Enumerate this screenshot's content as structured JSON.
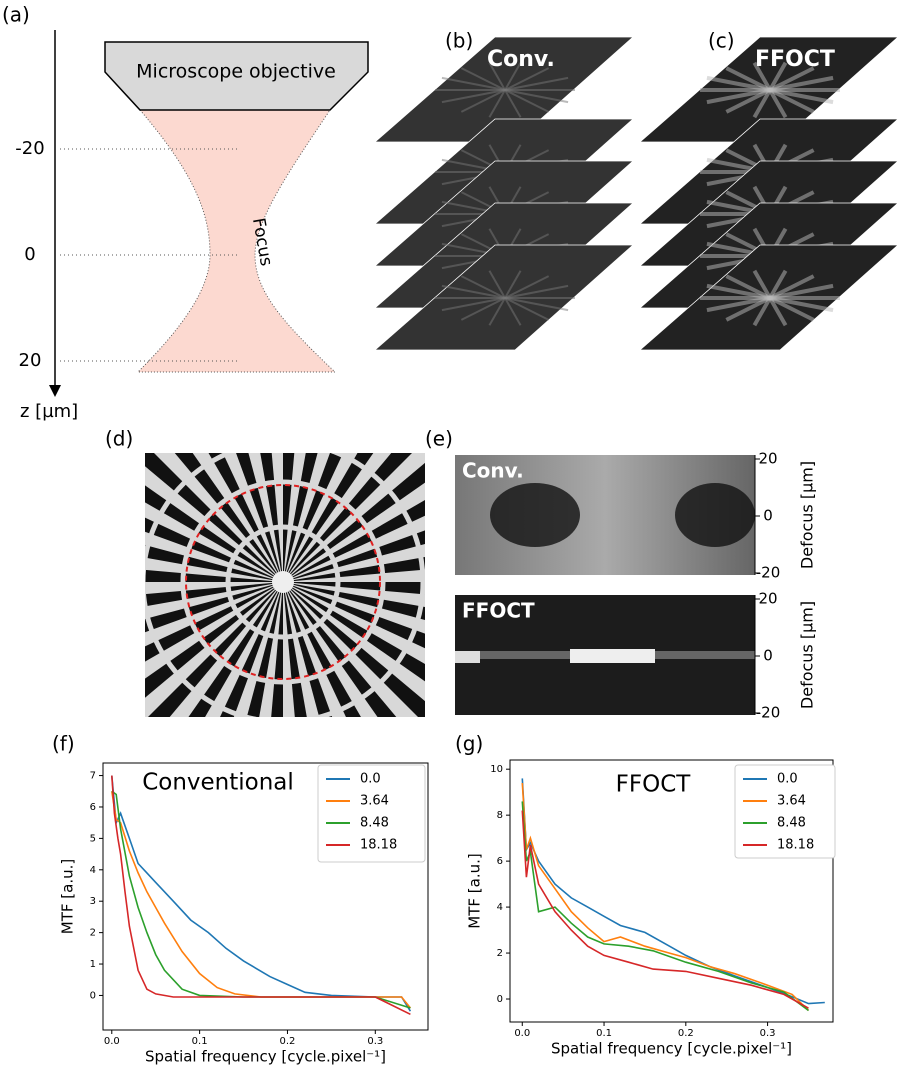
{
  "panel_labels": [
    "(a)",
    "(b)",
    "(c)",
    "(d)",
    "(e)",
    "(f)",
    "(g)"
  ],
  "diagram": {
    "objective": "Microscope objective",
    "focus": "Focus",
    "zticks": [
      -20,
      0,
      20
    ],
    "zlabel": "z [µm]"
  },
  "stacks": [
    {
      "label": "Conv."
    },
    {
      "label": "FFOCT"
    }
  ],
  "images": [
    {
      "label": "Conv.",
      "yticks": [
        20,
        0,
        -20
      ],
      "ylabel": "Defocus [µm]"
    },
    {
      "label": "FFOCT",
      "yticks": [
        20,
        0,
        -20
      ],
      "ylabel": "Defocus [µm]"
    }
  ],
  "chart_data": [
    {
      "type": "line",
      "title": "Conventional",
      "xlabel": "Spatial frequency [cycle.pixel⁻¹]",
      "ylabel": "MTF [a.u.]",
      "xlim": [
        -0.01,
        0.36
      ],
      "ylim": [
        -1.1,
        7.4
      ],
      "xticks": [
        {
          "value": 0,
          "label": "0.0"
        },
        0.1,
        0.2,
        0.3
      ],
      "yticks": [
        0,
        1,
        2,
        3,
        4,
        5,
        6,
        7
      ],
      "legend": "upper right",
      "series": [
        {
          "name": "0.0",
          "color": "#1f77b4",
          "x": [
            0,
            0.005,
            0.01,
            0.02,
            0.03,
            0.04,
            0.05,
            0.07,
            0.09,
            0.11,
            0.13,
            0.15,
            0.18,
            0.2,
            0.22,
            0.25,
            0.3,
            0.33,
            0.34
          ],
          "values": [
            7,
            5.5,
            5.8,
            5,
            4.2,
            3.9,
            3.6,
            3,
            2.4,
            2,
            1.5,
            1.1,
            0.6,
            0.35,
            0.1,
            0,
            -0.05,
            -0.05,
            -0.5
          ]
        },
        {
          "name": "3.64",
          "color": "#ff7f0e",
          "x": [
            0,
            0.005,
            0.01,
            0.02,
            0.03,
            0.04,
            0.05,
            0.06,
            0.08,
            0.1,
            0.12,
            0.14,
            0.17,
            0.2,
            0.25,
            0.3,
            0.33,
            0.34
          ],
          "values": [
            6.5,
            5.6,
            5.5,
            4.6,
            3.9,
            3.3,
            2.8,
            2.3,
            1.4,
            0.7,
            0.25,
            0.05,
            -0.05,
            -0.05,
            -0.05,
            -0.05,
            -0.05,
            -0.4
          ]
        },
        {
          "name": "8.48",
          "color": "#2ca02c",
          "x": [
            0,
            0.005,
            0.01,
            0.02,
            0.03,
            0.04,
            0.05,
            0.06,
            0.08,
            0.1,
            0.15,
            0.2,
            0.3,
            0.34
          ],
          "values": [
            6.5,
            6.4,
            5.3,
            3.8,
            2.8,
            2,
            1.3,
            0.8,
            0.2,
            0,
            -0.05,
            -0.05,
            -0.05,
            -0.4
          ]
        },
        {
          "name": "18.18",
          "color": "#d62728",
          "x": [
            0,
            0.003,
            0.007,
            0.01,
            0.015,
            0.02,
            0.03,
            0.04,
            0.05,
            0.07,
            0.1,
            0.2,
            0.3,
            0.34
          ],
          "values": [
            7,
            5.8,
            5,
            4.5,
            3.3,
            2.2,
            0.8,
            0.2,
            0.05,
            -0.05,
            -0.05,
            -0.05,
            -0.05,
            -0.6
          ]
        }
      ]
    },
    {
      "type": "line",
      "title": "FFOCT",
      "xlabel": "Spatial frequency [cycle.pixel⁻¹]",
      "ylabel": "MTF [a.u.]",
      "xlim": [
        -0.015,
        0.38
      ],
      "ylim": [
        -1,
        10.4
      ],
      "xticks": [
        {
          "value": 0,
          "label": "0.0"
        },
        0.1,
        0.2,
        0.3
      ],
      "yticks": [
        0,
        2,
        4,
        6,
        8,
        10
      ],
      "legend": "upper right",
      "series": [
        {
          "name": "0.0",
          "color": "#1f77b4",
          "x": [
            0,
            0.005,
            0.01,
            0.02,
            0.04,
            0.06,
            0.08,
            0.1,
            0.12,
            0.15,
            0.18,
            0.2,
            0.23,
            0.26,
            0.3,
            0.33,
            0.35,
            0.37
          ],
          "values": [
            9.6,
            6.5,
            6.8,
            6,
            5,
            4.4,
            4,
            3.6,
            3.2,
            2.9,
            2.3,
            1.9,
            1.4,
            1,
            0.5,
            0.1,
            -0.2,
            -0.15
          ]
        },
        {
          "name": "3.64",
          "color": "#ff7f0e",
          "x": [
            0,
            0.005,
            0.01,
            0.02,
            0.04,
            0.06,
            0.08,
            0.1,
            0.12,
            0.15,
            0.18,
            0.2,
            0.23,
            0.26,
            0.3,
            0.33,
            0.35
          ],
          "values": [
            9.4,
            6.5,
            7,
            5.8,
            4.8,
            3.8,
            3.1,
            2.5,
            2.7,
            2.3,
            2,
            1.8,
            1.4,
            1.1,
            0.6,
            0.2,
            -0.5
          ]
        },
        {
          "name": "8.48",
          "color": "#2ca02c",
          "x": [
            0,
            0.005,
            0.01,
            0.02,
            0.04,
            0.06,
            0.08,
            0.1,
            0.13,
            0.16,
            0.2,
            0.24,
            0.28,
            0.32,
            0.35
          ],
          "values": [
            8.6,
            6,
            6.4,
            3.8,
            4,
            3.3,
            2.7,
            2.4,
            2.3,
            2.1,
            1.6,
            1.2,
            0.7,
            0.3,
            -0.5
          ]
        },
        {
          "name": "18.18",
          "color": "#d62728",
          "x": [
            0,
            0.005,
            0.01,
            0.02,
            0.04,
            0.06,
            0.08,
            0.1,
            0.13,
            0.16,
            0.2,
            0.24,
            0.28,
            0.32,
            0.35
          ],
          "values": [
            8.2,
            5.3,
            6.7,
            5,
            3.8,
            3,
            2.3,
            1.9,
            1.6,
            1.3,
            1.2,
            0.9,
            0.6,
            0.2,
            -0.4
          ]
        }
      ]
    }
  ]
}
